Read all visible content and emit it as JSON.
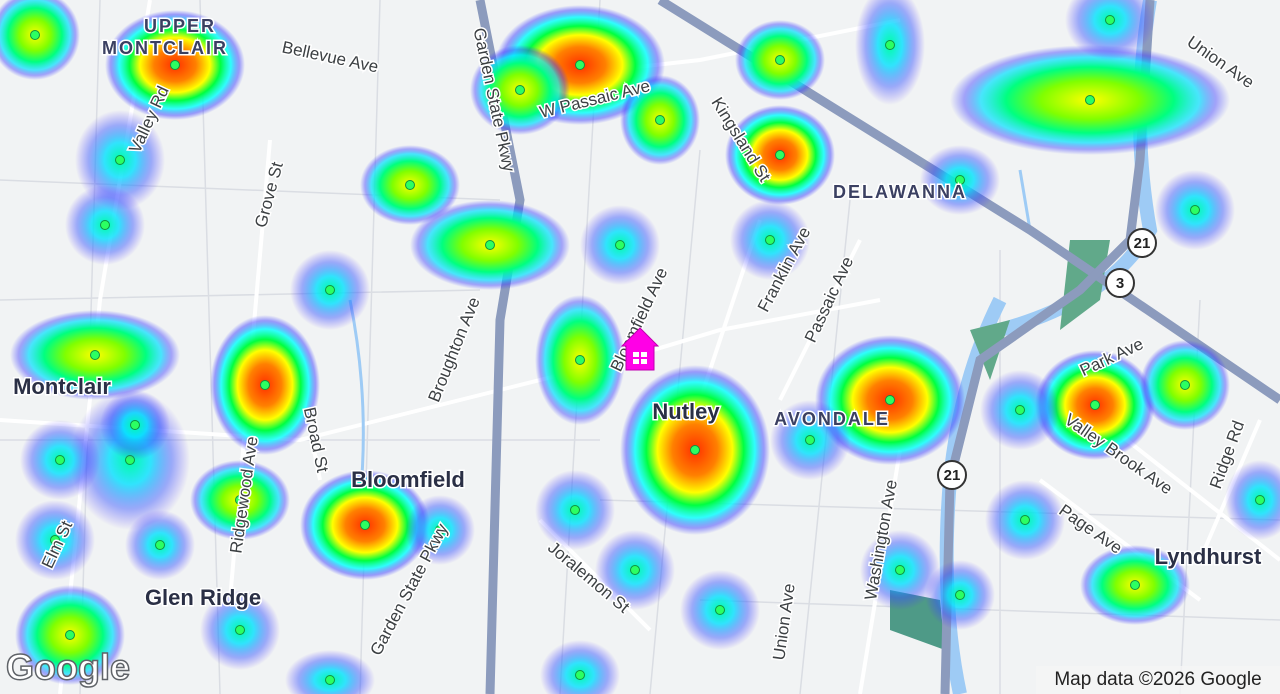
{
  "map": {
    "places": [
      {
        "lines": [
          "UPPER",
          "MONTCLAIR"
        ]
      },
      "DELAWANNA",
      "Montclair",
      "Nutley",
      "AVONDALE",
      "Bloomfield",
      "Lyndhurst",
      "Glen Ridge"
    ],
    "streets": [
      "Bellevue Ave",
      "Valley Rd",
      "Grove St",
      "Garden State Pkwy",
      "W Passaic Ave",
      "Kingsland St",
      "Union Ave",
      "Franklin Ave",
      "Passaic Ave",
      "Broughton Ave",
      "Bloomfield Ave",
      "Broad St",
      "Ridgewood Ave",
      "Park Ave",
      "Valley Brook Ave",
      "Ridge Rd",
      "Washington Ave",
      "Elm St",
      "Joralemon St",
      "Page Ave",
      "Garden State Pkwy",
      "Union Ave"
    ],
    "route_shields": [
      "21",
      "3",
      "21"
    ],
    "logo": "Google",
    "attribution": "Map data ©2026 Google"
  }
}
